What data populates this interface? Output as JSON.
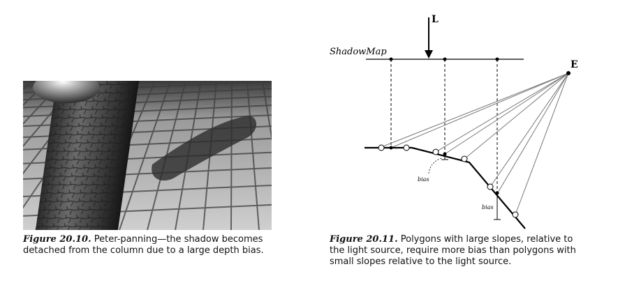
{
  "figure_left": {
    "number": "Figure 20.10.",
    "caption": "Peter-panning—the shadow becomes detached from the column due to a large depth bias."
  },
  "figure_right": {
    "number": "Figure 20.11.",
    "caption": "Polygons with large slopes, relative to the light source, require more bias than polygons with small slopes relative to the light source.",
    "labels": {
      "light": "L",
      "eye": "E",
      "shadow_map": "ShadowMap",
      "bias_upper": "bias",
      "bias_lower": "bias"
    }
  }
}
